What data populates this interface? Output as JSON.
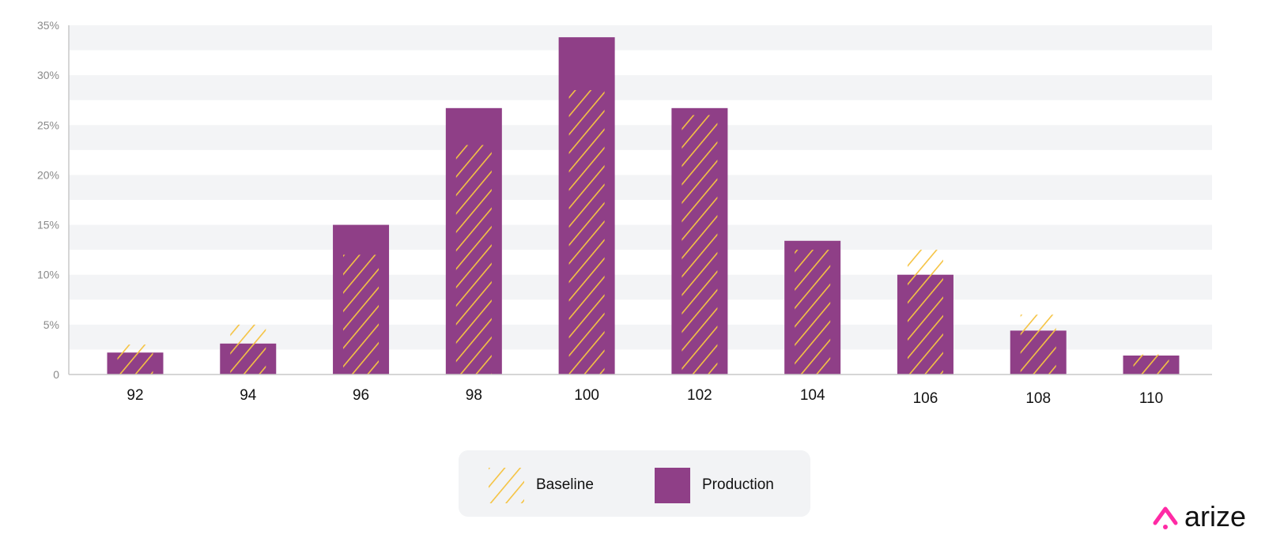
{
  "chart_data": {
    "type": "bar",
    "categories": [
      "92",
      "94",
      "96",
      "98",
      "100",
      "102",
      "104",
      "106",
      "108",
      "110"
    ],
    "series": [
      {
        "name": "Baseline",
        "values": [
          3,
          5,
          12,
          23,
          28.5,
          26,
          12.5,
          12.5,
          6,
          2
        ]
      },
      {
        "name": "Production",
        "values": [
          2.2,
          3.1,
          15,
          26.7,
          33.8,
          26.7,
          13.4,
          10,
          4.4,
          1.9
        ]
      }
    ],
    "ylim": [
      0,
      35
    ],
    "yticks": [
      0,
      5,
      10,
      15,
      20,
      25,
      30,
      35
    ],
    "ytick_labels": [
      "0",
      "5%",
      "10%",
      "15%",
      "20%",
      "25%",
      "30%",
      "35%"
    ],
    "title": "",
    "xlabel": "",
    "ylabel": "",
    "grid": "alternating horizontal bands",
    "legend_position": "bottom-center",
    "colors": {
      "baseline": "#f5c342",
      "production": "#8f3f87",
      "band": "#f3f4f6",
      "axis": "#cccccc"
    }
  },
  "legend": {
    "baseline_label": "Baseline",
    "production_label": "Production"
  },
  "branding": {
    "logo_text": "arize",
    "logo_color": "#ff2aa5"
  }
}
